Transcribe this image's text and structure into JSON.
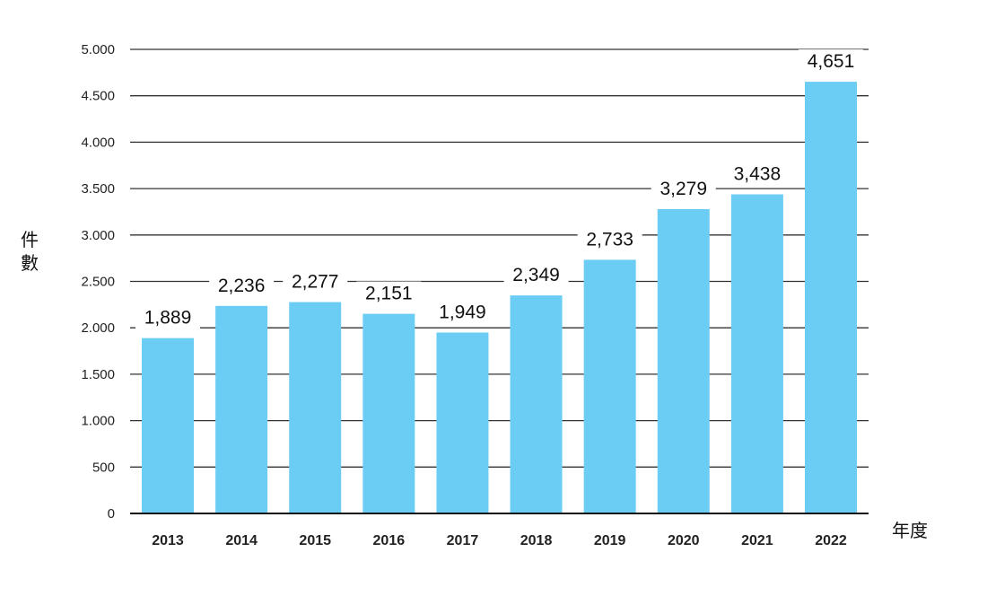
{
  "chart_data": {
    "type": "bar",
    "categories": [
      "2013",
      "2014",
      "2015",
      "2016",
      "2017",
      "2018",
      "2019",
      "2020",
      "2021",
      "2022"
    ],
    "values": [
      1889,
      2236,
      2277,
      2151,
      1949,
      2349,
      2733,
      3279,
      3438,
      4651
    ],
    "value_labels": [
      "1,889",
      "2,236",
      "2,277",
      "2,151",
      "1,949",
      "2,349",
      "2,733",
      "3,279",
      "3,438",
      "4,651"
    ],
    "xlabel": "年度",
    "ylabel": "件數",
    "ylim": [
      0,
      5000
    ],
    "yticks": [
      0,
      500,
      1000,
      1500,
      2000,
      2500,
      3000,
      3500,
      4000,
      4500,
      5000
    ],
    "ytick_labels": [
      "0",
      "500",
      "1.000",
      "1.500",
      "2.000",
      "2.500",
      "3.000",
      "3.500",
      "4.000",
      "4.500",
      "5.000"
    ],
    "grid": true,
    "bar_color": "#6BCDF3",
    "grid_color": "#333333"
  }
}
